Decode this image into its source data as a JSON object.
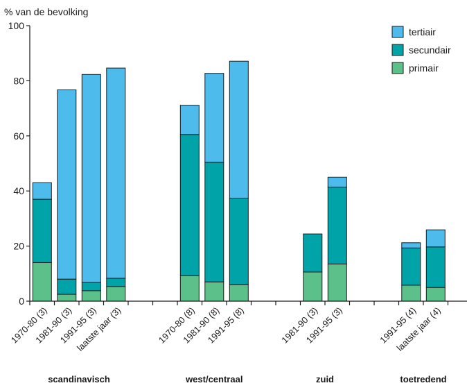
{
  "chart_data": {
    "type": "bar",
    "stacked": true,
    "ylabel": "% van de bevolking",
    "ylim": [
      0,
      100
    ],
    "yticks": [
      0,
      20,
      40,
      60,
      80,
      100
    ],
    "grid": false,
    "legend_position": "top-right",
    "colors": {
      "primair": "#5cc08a",
      "secundair": "#00a3a8",
      "tertiair": "#4dbbec"
    },
    "legend": [
      {
        "name": "tertiair",
        "color": "#4dbbec"
      },
      {
        "name": "secundair",
        "color": "#00a3a8"
      },
      {
        "name": "primair",
        "color": "#5cc08a"
      }
    ],
    "groups": [
      {
        "name": "scandinavisch",
        "categories": [
          "1970-80 (3)",
          "1981-90 (3)",
          "1991-95 (3)",
          "laatste jaar (3)"
        ]
      },
      {
        "name": "west/centraal",
        "categories": [
          "1970-80 (8)",
          "1981-90 (8)",
          "1991-95 (8)"
        ]
      },
      {
        "name": "zuid",
        "categories": [
          "1981-90 (3)",
          "1991-95 (3)"
        ]
      },
      {
        "name": "toetredend",
        "categories": [
          "1991-95 (4)",
          "laatste jaar (4)"
        ]
      }
    ],
    "categories": [
      "1970-80 (3)",
      "1981-90 (3)",
      "1991-95 (3)",
      "laatste jaar (3)",
      "1970-80 (8)",
      "1981-90 (8)",
      "1991-95 (8)",
      "1981-90 (3)",
      "1991-95 (3)",
      "1991-95 (4)",
      "laatste jaar (4)"
    ],
    "series": [
      {
        "name": "primair",
        "values": [
          14,
          2.5,
          3.8,
          5.3,
          9.3,
          7.0,
          6.0,
          10.6,
          13.5,
          5.8,
          5.0
        ]
      },
      {
        "name": "secundair",
        "values": [
          23,
          5.5,
          3.0,
          3.0,
          51.2,
          43.4,
          31.4,
          13.8,
          27.9,
          13.5,
          14.7
        ]
      },
      {
        "name": "tertiair",
        "values": [
          6.0,
          68.7,
          75.5,
          76.3,
          10.6,
          32.3,
          49.7,
          0,
          3.6,
          1.9,
          6.2
        ]
      }
    ]
  }
}
